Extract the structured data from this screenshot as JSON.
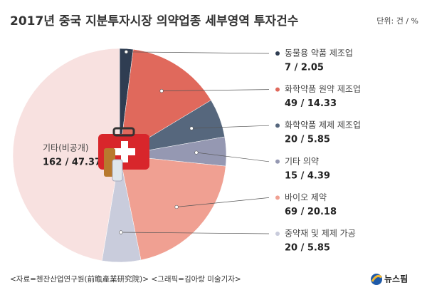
{
  "chart_data": {
    "type": "pie",
    "title": "2017년 중국 지분투자시장 의약업종 세부영역 투자건수",
    "unit": "단위: 건 / %",
    "categories": [
      "동물용 약품 제조업",
      "화학약품 원약 제조업",
      "화학약품 제제 제조업",
      "기타 의약",
      "바이오 제약",
      "중약재 및 제제 가공",
      "기타(비공개)"
    ],
    "values": [
      2.05,
      14.33,
      5.85,
      4.39,
      20.18,
      5.85,
      47.37
    ],
    "counts": [
      7,
      49,
      20,
      15,
      69,
      20,
      162
    ],
    "value_labels": [
      "7 / 2.05",
      "49 / 14.33",
      "20 / 5.85",
      "15 / 4.39",
      "69 / 20.18",
      "20 / 5.85",
      "162 / 47.37"
    ],
    "colors": [
      "#2f3d52",
      "#e0695c",
      "#56677d",
      "#9598b2",
      "#f0a092",
      "#c9ccdc",
      "#f8e1e0"
    ],
    "source": "<자료=첸잔산업연구원(前瞻產業研究院)>  <그래픽=김아랑 미술기자>",
    "logo": "뉴스핌"
  }
}
